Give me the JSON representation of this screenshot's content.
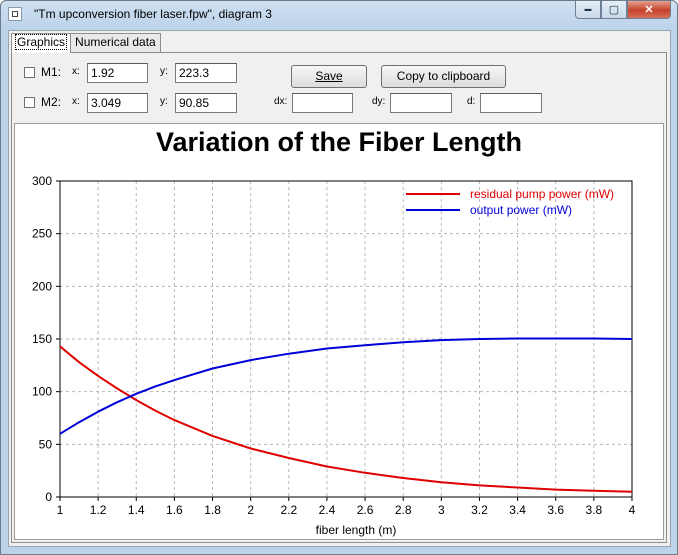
{
  "window": {
    "title": "\"Tm upconversion fiber laser.fpw\", diagram 3",
    "minimize_glyph": "▬",
    "maximize_glyph": "▢",
    "close_glyph": "✕"
  },
  "tabs": [
    {
      "label": "Graphics",
      "active": true
    },
    {
      "label": "Numerical data",
      "active": false
    }
  ],
  "markers": {
    "m1": {
      "label": "M1:",
      "x_label": "x:",
      "x_value": "1.92",
      "y_label": "y:",
      "y_value": "223.3",
      "checked": false
    },
    "m2": {
      "label": "M2:",
      "x_label": "x:",
      "x_value": "3.049",
      "y_label": "y:",
      "y_value": "90.85",
      "checked": false
    }
  },
  "deltas": {
    "dx_label": "dx:",
    "dx_value": "",
    "dy_label": "dy:",
    "dy_value": "",
    "d_label": "d:",
    "d_value": ""
  },
  "buttons": {
    "save_label": "Save",
    "copy_label": "Copy to clipboard"
  },
  "chart_data": {
    "type": "line",
    "title": "Variation of the Fiber Length",
    "xlabel": "fiber length (m)",
    "ylabel": "",
    "xlim": [
      1,
      4
    ],
    "ylim": [
      0,
      300
    ],
    "xticks": [
      "1",
      "1.2",
      "1.4",
      "1.6",
      "1.8",
      "2",
      "2.2",
      "2.4",
      "2.6",
      "2.8",
      "3",
      "3.2",
      "3.4",
      "3.6",
      "3.8",
      "4"
    ],
    "yticks": [
      "0",
      "50",
      "100",
      "150",
      "200",
      "250",
      "300"
    ],
    "grid": true,
    "legend_position": "top-right",
    "series": [
      {
        "name": "residual pump power (mW)",
        "color": "#e00000",
        "x": [
          1.0,
          1.1,
          1.2,
          1.3,
          1.4,
          1.5,
          1.6,
          1.8,
          2.0,
          2.2,
          2.4,
          2.6,
          2.8,
          3.0,
          3.2,
          3.4,
          3.6,
          3.8,
          4.0
        ],
        "y": [
          143,
          128,
          115,
          103,
          92,
          82,
          73,
          58,
          46,
          37,
          29,
          23,
          18,
          14,
          11,
          9,
          7,
          6,
          5
        ]
      },
      {
        "name": "output power (mW)",
        "color": "#0000d8",
        "x": [
          1.0,
          1.1,
          1.2,
          1.3,
          1.4,
          1.5,
          1.6,
          1.8,
          2.0,
          2.2,
          2.4,
          2.6,
          2.8,
          3.0,
          3.2,
          3.4,
          3.6,
          3.8,
          4.0
        ],
        "y": [
          60,
          71,
          81,
          90,
          98,
          105,
          111,
          122,
          130,
          136,
          141,
          144,
          147,
          149,
          150,
          150.5,
          150.5,
          150.5,
          150
        ]
      }
    ]
  }
}
